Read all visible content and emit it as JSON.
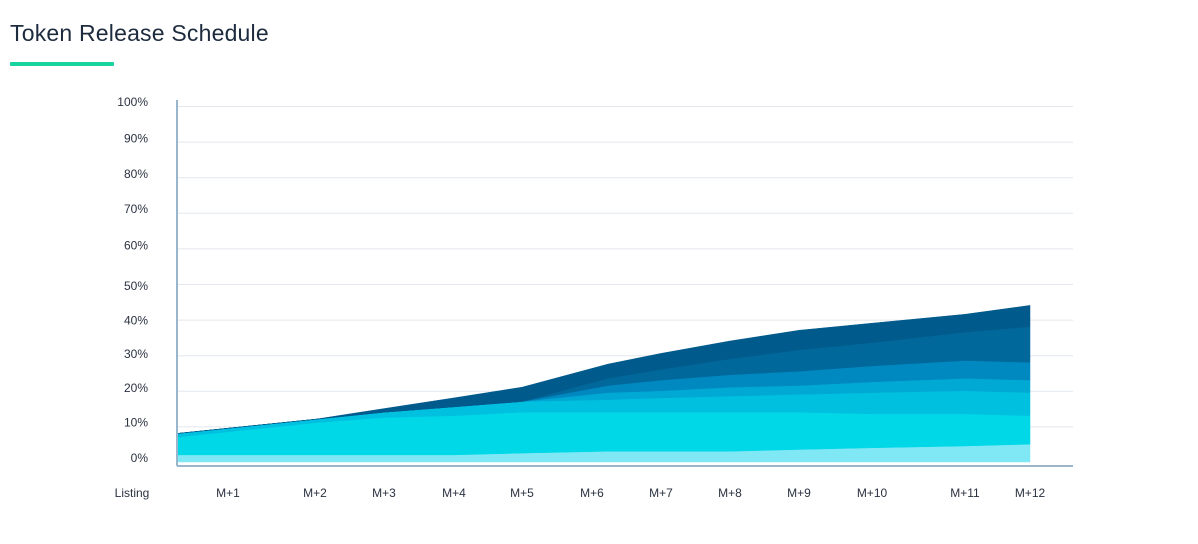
{
  "title": "Token Release Schedule",
  "colors": {
    "underline": "#17d3a0",
    "axis": "#9ab6cc",
    "grid": "#e4e8ee"
  },
  "chart_data": {
    "type": "area",
    "stacked": true,
    "title": "Token Release Schedule",
    "xlabel": "",
    "ylabel": "",
    "x_ticks": [
      "Listing",
      "M+1",
      "M+2",
      "M+3",
      "M+4",
      "M+5",
      "M+6",
      "M+7",
      "M+8",
      "M+9",
      "M+10",
      "M+11",
      "M+12"
    ],
    "y_ticks": [
      "0%",
      "10%",
      "20%",
      "30%",
      "40%",
      "50%",
      "60%",
      "70%",
      "80%",
      "90%",
      "100%"
    ],
    "ylim": [
      0,
      100
    ],
    "grid": true,
    "x": [
      0,
      1,
      2,
      3,
      4,
      5,
      6,
      7,
      8,
      9,
      10,
      11,
      12
    ],
    "series": [
      {
        "color": "#80e8f5",
        "values": [
          2,
          2,
          2,
          2,
          2,
          2.5,
          3,
          3,
          3,
          3.5,
          4,
          4.5,
          5
        ]
      },
      {
        "color": "#00d8e8",
        "values": [
          3,
          5,
          9,
          10.5,
          11,
          11.5,
          11,
          11,
          11,
          10.5,
          9.5,
          9,
          8
        ]
      },
      {
        "color": "#00c0e0",
        "values": [
          0,
          1,
          1,
          1.5,
          2.5,
          3,
          3.5,
          4,
          4.5,
          5,
          6,
          6.5,
          6.5
        ]
      },
      {
        "color": "#00a8d4",
        "values": [
          0,
          0,
          0,
          0,
          0,
          0,
          2,
          2,
          2.5,
          2.5,
          3,
          3.5,
          3.5
        ]
      },
      {
        "color": "#0088c0",
        "values": [
          0,
          0,
          0,
          0,
          0,
          0,
          2,
          3,
          3.5,
          4,
          4.5,
          5,
          5
        ]
      },
      {
        "color": "#00689a",
        "values": [
          0,
          0,
          0,
          0,
          0,
          0,
          2,
          3,
          4.5,
          6,
          6.5,
          8,
          10
        ]
      },
      {
        "color": "#005a8c",
        "values": [
          0,
          0,
          0,
          1,
          2.5,
          4,
          4,
          4.5,
          5,
          5.5,
          5.5,
          5,
          6
        ]
      }
    ]
  }
}
